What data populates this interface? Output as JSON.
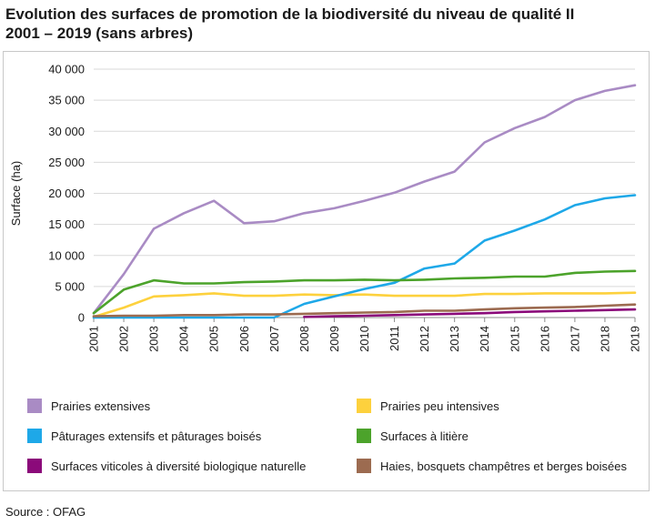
{
  "header": {
    "title_line1": "Evolution des surfaces de promotion de la biodiversité du niveau de qualité II",
    "title_line2": "2001 – 2019 (sans arbres)"
  },
  "source": "Source : OFAG",
  "chart_data": {
    "type": "line",
    "title": "Evolution des surfaces de promotion de la biodiversité du niveau de qualité II 2001 – 2019 (sans arbres)",
    "xlabel": "",
    "ylabel": "Surface (ha)",
    "ylim": [
      0,
      40000
    ],
    "yticks": [
      0,
      5000,
      10000,
      15000,
      20000,
      25000,
      30000,
      35000,
      40000
    ],
    "ytick_labels": [
      "0",
      "5 000",
      "10 000",
      "15 000",
      "20 000",
      "25 000",
      "30 000",
      "35 000",
      "40 000"
    ],
    "x": [
      "2001",
      "2002",
      "2003",
      "2004",
      "2005",
      "2006",
      "2007",
      "2008",
      "2009",
      "2010",
      "2011",
      "2012",
      "2013",
      "2014",
      "2015",
      "2016",
      "2017",
      "2018",
      "2019"
    ],
    "grid": "horizontal",
    "series": [
      {
        "name": "Prairies extensives",
        "color": "#a98bc4",
        "values": [
          700,
          7000,
          14300,
          16800,
          18800,
          15200,
          15500,
          16800,
          17600,
          18800,
          20100,
          21900,
          23500,
          28200,
          30500,
          32300,
          35000,
          36500,
          37400
        ]
      },
      {
        "name": "Prairies peu intensives",
        "color": "#fdd13d",
        "values": [
          100,
          1600,
          3400,
          3600,
          3900,
          3500,
          3500,
          3700,
          3600,
          3700,
          3500,
          3500,
          3500,
          3800,
          3800,
          3900,
          3900,
          3900,
          4000
        ]
      },
      {
        "name": "Pâturages extensifs et pâturages boisés",
        "color": "#1ea8e8",
        "values": [
          0,
          0,
          0,
          0,
          0,
          0,
          0,
          2200,
          3400,
          4600,
          5600,
          7900,
          8700,
          12400,
          14000,
          15800,
          18100,
          19200,
          19700
        ]
      },
      {
        "name": "Surfaces à litière",
        "color": "#4ca32b",
        "values": [
          700,
          4500,
          6000,
          5500,
          5500,
          5700,
          5800,
          6000,
          6000,
          6100,
          6000,
          6100,
          6300,
          6400,
          6600,
          6600,
          7200,
          7400,
          7500
        ]
      },
      {
        "name": "Surfaces viticoles à diversité biologique naturelle",
        "color": "#8b0a7a",
        "values": [
          null,
          null,
          null,
          null,
          null,
          null,
          null,
          100,
          200,
          300,
          400,
          500,
          600,
          700,
          900,
          1000,
          1100,
          1200,
          1300
        ]
      },
      {
        "name": "Haies, bosquets champêtres et berges boisées",
        "color": "#9c6b50",
        "values": [
          200,
          300,
          300,
          400,
          400,
          500,
          500,
          600,
          700,
          800,
          900,
          1100,
          1100,
          1300,
          1500,
          1600,
          1700,
          1900,
          2100
        ]
      }
    ],
    "legend_position": "bottom"
  }
}
